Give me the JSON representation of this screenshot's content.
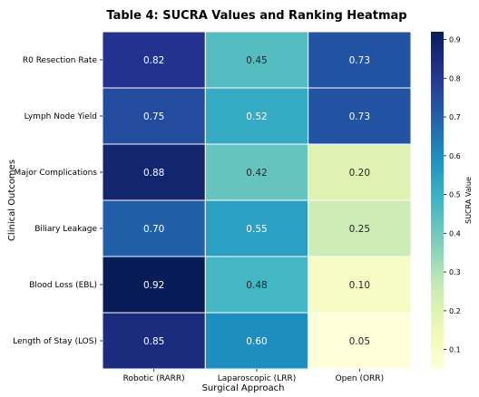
{
  "chart_data": {
    "type": "heatmap",
    "title": "Table 4: SUCRA Values and Ranking Heatmap",
    "xlabel": "Surgical Approach",
    "ylabel": "Clinical Outcomes",
    "x_categories": [
      "Robotic (RARR)",
      "Laparoscopic (LRR)",
      "Open (ORR)"
    ],
    "y_categories": [
      "R0 Resection Rate",
      "Lymph Node Yield",
      "Major Complications",
      "Biliary Leakage",
      "Blood Loss (EBL)",
      "Length of Stay (LOS)"
    ],
    "values": [
      [
        0.82,
        0.45,
        0.73
      ],
      [
        0.75,
        0.52,
        0.73
      ],
      [
        0.88,
        0.42,
        0.2
      ],
      [
        0.7,
        0.55,
        0.25
      ],
      [
        0.92,
        0.48,
        0.1
      ],
      [
        0.85,
        0.6,
        0.05
      ]
    ],
    "cell_labels": [
      [
        "0.82",
        "0.45",
        "0.73"
      ],
      [
        "0.75",
        "0.52",
        "0.73"
      ],
      [
        "0.88",
        "0.42",
        "0.20"
      ],
      [
        "0.70",
        "0.55",
        "0.25"
      ],
      [
        "0.92",
        "0.48",
        "0.10"
      ],
      [
        "0.85",
        "0.60",
        "0.05"
      ]
    ],
    "colormap": "YlGnBu",
    "colorbar": {
      "label": "SUCRA Value",
      "range": [
        0.05,
        0.92
      ],
      "ticks": [
        0.1,
        0.2,
        0.3,
        0.4,
        0.5,
        0.6,
        0.7,
        0.8,
        0.9
      ],
      "tick_labels": [
        "0.1",
        "0.2",
        "0.3",
        "0.4",
        "0.5",
        "0.6",
        "0.7",
        "0.8",
        "0.9"
      ]
    }
  }
}
